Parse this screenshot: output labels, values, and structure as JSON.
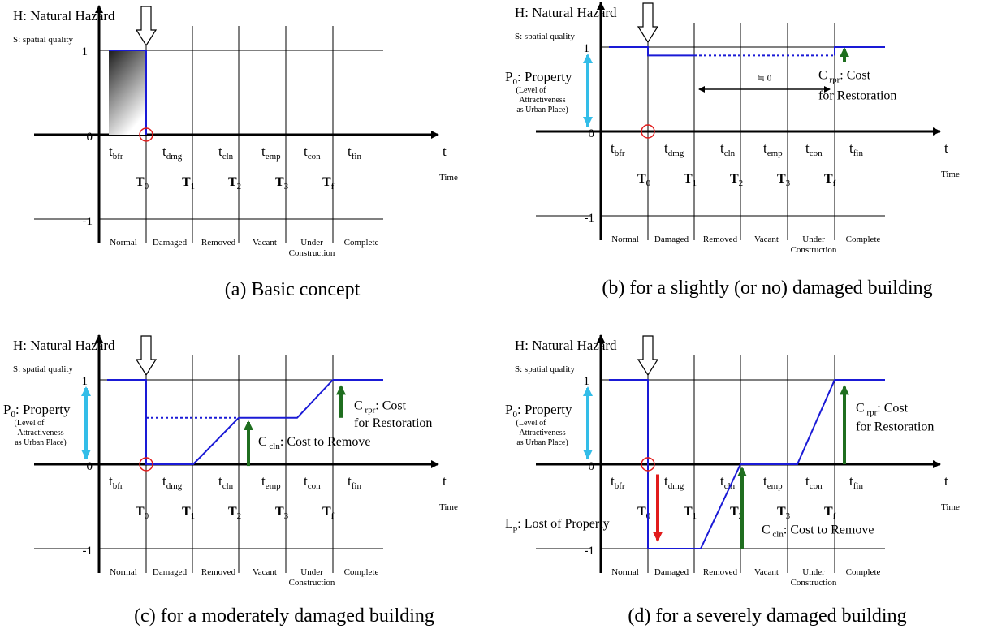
{
  "colors": {
    "blue": "#1a1ad6",
    "cyan": "#33bde8",
    "green": "#1f6e1f",
    "red": "#e11b1b",
    "black": "#000000"
  },
  "labels": {
    "hazard": "H: Natural Hazard",
    "spatial_quality": "S: spatial quality",
    "y_one": "1",
    "y_zero": "0",
    "y_minus_one": "-1",
    "t_axis": "t",
    "time": "Time",
    "phases": [
      "t bfr",
      "t dmg",
      "t cln",
      "t emp",
      "t con",
      "t fin"
    ],
    "markers": [
      "T0",
      "T1",
      "T2",
      "T3",
      "Tf"
    ],
    "states": [
      "Normal",
      "Damaged",
      "Removed",
      "Vacant",
      "Under Construction",
      "Complete"
    ],
    "property": "P0: Property",
    "property_desc": "(Level of Attractiveness as Urban Place)",
    "approx_zero": "≒ 0",
    "c_rpr": "C rpr: Cost for Restoration",
    "c_cln": "C cln: Cost to Remove",
    "l_p": "Lp: Lost of Property"
  },
  "panels": [
    {
      "id": "a",
      "caption": "(a) Basic concept",
      "quality": {
        "t_bfr": 1,
        "t_dmg": 0,
        "t_cln": null,
        "t_emp": null,
        "t_con": null,
        "t_fin": null
      }
    },
    {
      "id": "b",
      "caption": "(b) for a slightly (or no) damaged building",
      "quality": {
        "t_bfr": 1,
        "t_dmg": 0.9,
        "t_cln": 0.9,
        "t_emp": 0.9,
        "t_con": 0.9,
        "t_fin": 1
      }
    },
    {
      "id": "c",
      "caption": "(c) for a moderately damaged building",
      "quality": {
        "t_bfr": 1,
        "t_dmg": 0,
        "t_cln": 0.55,
        "t_emp": 0.55,
        "t_con": 1,
        "t_fin": 1
      }
    },
    {
      "id": "d",
      "caption": "(d) for a severely damaged building",
      "quality": {
        "t_bfr": 1,
        "t_dmg": -1,
        "t_cln": 0,
        "t_emp": 0,
        "t_con": 1,
        "t_fin": 1
      }
    }
  ]
}
